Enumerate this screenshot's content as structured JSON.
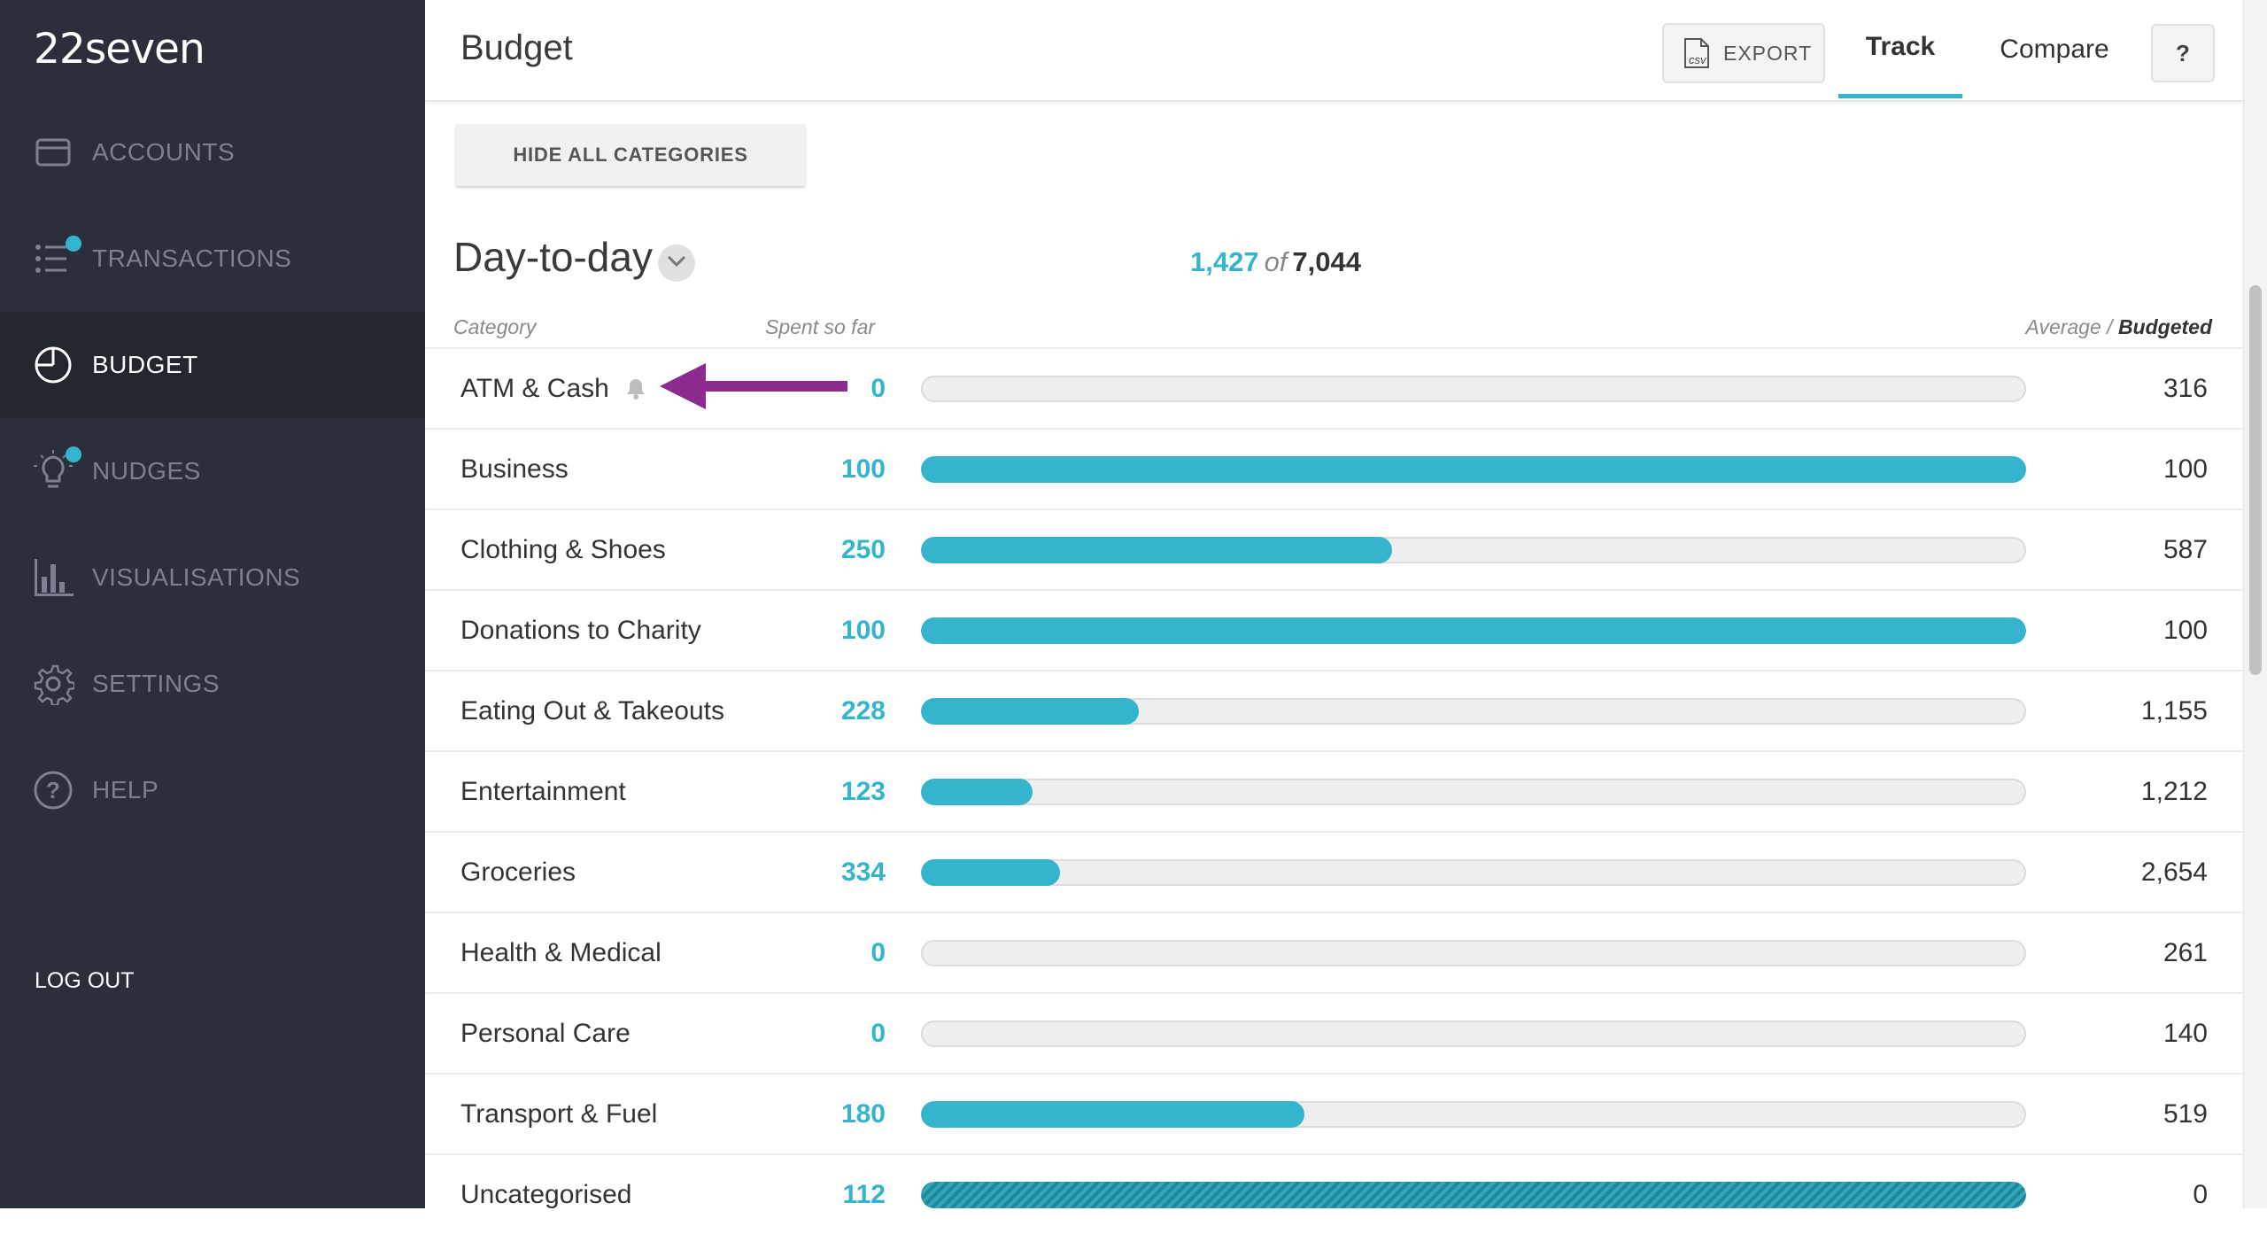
{
  "app": {
    "logo": "22seven"
  },
  "sidebar": {
    "items": [
      {
        "label": "ACCOUNTS",
        "icon": "card-icon",
        "active": false,
        "badge": false
      },
      {
        "label": "TRANSACTIONS",
        "icon": "list-icon",
        "active": false,
        "badge": true
      },
      {
        "label": "BUDGET",
        "icon": "pie-icon",
        "active": true,
        "badge": false
      },
      {
        "label": "NUDGES",
        "icon": "lightbulb-icon",
        "active": false,
        "badge": true
      },
      {
        "label": "VISUALISATIONS",
        "icon": "bar-chart-icon",
        "active": false,
        "badge": false
      },
      {
        "label": "SETTINGS",
        "icon": "gear-icon",
        "active": false,
        "badge": false
      },
      {
        "label": "HELP",
        "icon": "help-icon",
        "active": false,
        "badge": false
      }
    ],
    "logout": "LOG OUT"
  },
  "header": {
    "title": "Budget",
    "export_label": "EXPORT",
    "export_icon": "csv-file-icon",
    "tabs": [
      {
        "label": "Track",
        "active": true
      },
      {
        "label": "Compare",
        "active": false
      }
    ],
    "help_label": "?"
  },
  "toolbar": {
    "hide_all": "HIDE ALL CATEGORIES"
  },
  "section": {
    "title": "Day-to-day",
    "spent_total": "1,427",
    "of": "of",
    "budget_total": "7,044"
  },
  "columns": {
    "category": "Category",
    "spent": "Spent so far",
    "average": "Average /",
    "budgeted": "Budgeted"
  },
  "colors": {
    "accent": "#35b5cd",
    "sidebar_bg": "#2b2e3b",
    "annotation_arrow": "#8b2a8f"
  },
  "rows": [
    {
      "name": "ATM & Cash",
      "spent": "0",
      "budget": "316",
      "progress": 0,
      "bell": true
    },
    {
      "name": "Business",
      "spent": "100",
      "budget": "100",
      "progress": 1.0
    },
    {
      "name": "Clothing & Shoes",
      "spent": "250",
      "budget": "587",
      "progress": 0.426
    },
    {
      "name": "Donations to Charity",
      "spent": "100",
      "budget": "100",
      "progress": 1.0
    },
    {
      "name": "Eating Out & Takeouts",
      "spent": "228",
      "budget": "1,155",
      "progress": 0.197
    },
    {
      "name": "Entertainment",
      "spent": "123",
      "budget": "1,212",
      "progress": 0.101
    },
    {
      "name": "Groceries",
      "spent": "334",
      "budget": "2,654",
      "progress": 0.126
    },
    {
      "name": "Health & Medical",
      "spent": "0",
      "budget": "261",
      "progress": 0
    },
    {
      "name": "Personal Care",
      "spent": "0",
      "budget": "140",
      "progress": 0
    },
    {
      "name": "Transport & Fuel",
      "spent": "180",
      "budget": "519",
      "progress": 0.347
    },
    {
      "name": "Uncategorised",
      "spent": "112",
      "budget": "0",
      "progress": 1.0,
      "striped": true
    }
  ]
}
